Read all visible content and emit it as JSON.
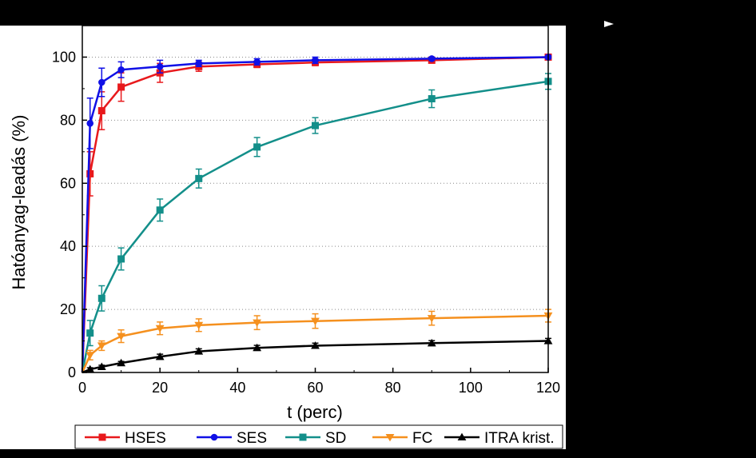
{
  "chart_data": {
    "type": "line",
    "title": "",
    "xlabel": "t (perc)",
    "ylabel": "Hatóanyag-leadás (%)",
    "xlim": [
      0,
      120
    ],
    "ylim": [
      0,
      110
    ],
    "xticks": [
      0,
      20,
      40,
      60,
      80,
      100,
      120
    ],
    "yticks": [
      0,
      20,
      40,
      60,
      80,
      100
    ],
    "grid": "horizontal-dotted",
    "legend_position": "bottom",
    "x": [
      0,
      2,
      5,
      10,
      20,
      30,
      45,
      60,
      90,
      120
    ],
    "series": [
      {
        "name": "HSES",
        "color": "#e8191c",
        "marker": "square",
        "values": [
          0,
          63,
          83,
          90.5,
          95,
          97,
          97.7,
          98.3,
          99,
          100
        ],
        "errors": [
          0,
          7,
          6,
          4.5,
          3,
          1.5,
          1,
          1,
          0.7,
          0.5
        ]
      },
      {
        "name": "SES",
        "color": "#1010e6",
        "marker": "circle",
        "values": [
          0,
          79,
          92,
          96,
          97,
          98,
          98.5,
          99,
          99.5,
          100
        ],
        "errors": [
          0,
          8,
          4.5,
          2.5,
          2,
          1,
          1,
          1,
          0.5,
          0.5
        ]
      },
      {
        "name": "SD",
        "color": "#138f8a",
        "marker": "square",
        "values": [
          0,
          12.5,
          23.5,
          36,
          51.5,
          61.5,
          71.5,
          78.3,
          86.8,
          92.3
        ],
        "errors": [
          0,
          4,
          4,
          3.5,
          3.5,
          3,
          3,
          2.5,
          2.8,
          2.5
        ]
      },
      {
        "name": "FC",
        "color": "#f5901e",
        "marker": "triangle-down",
        "values": [
          0,
          5.5,
          8.5,
          11.5,
          14,
          15,
          15.8,
          16.3,
          17.2,
          18
        ],
        "errors": [
          0,
          1.5,
          1.5,
          2,
          2,
          2,
          2.2,
          2.3,
          2.2,
          2
        ]
      },
      {
        "name": "ITRA krist.",
        "color": "#000000",
        "marker": "triangle-up",
        "values": [
          0,
          1,
          1.8,
          3,
          5,
          6.7,
          7.8,
          8.5,
          9.3,
          10
        ],
        "errors": [
          0,
          0.5,
          0.5,
          0.5,
          0.8,
          0.8,
          0.8,
          0.8,
          0.8,
          0.8
        ]
      }
    ]
  }
}
